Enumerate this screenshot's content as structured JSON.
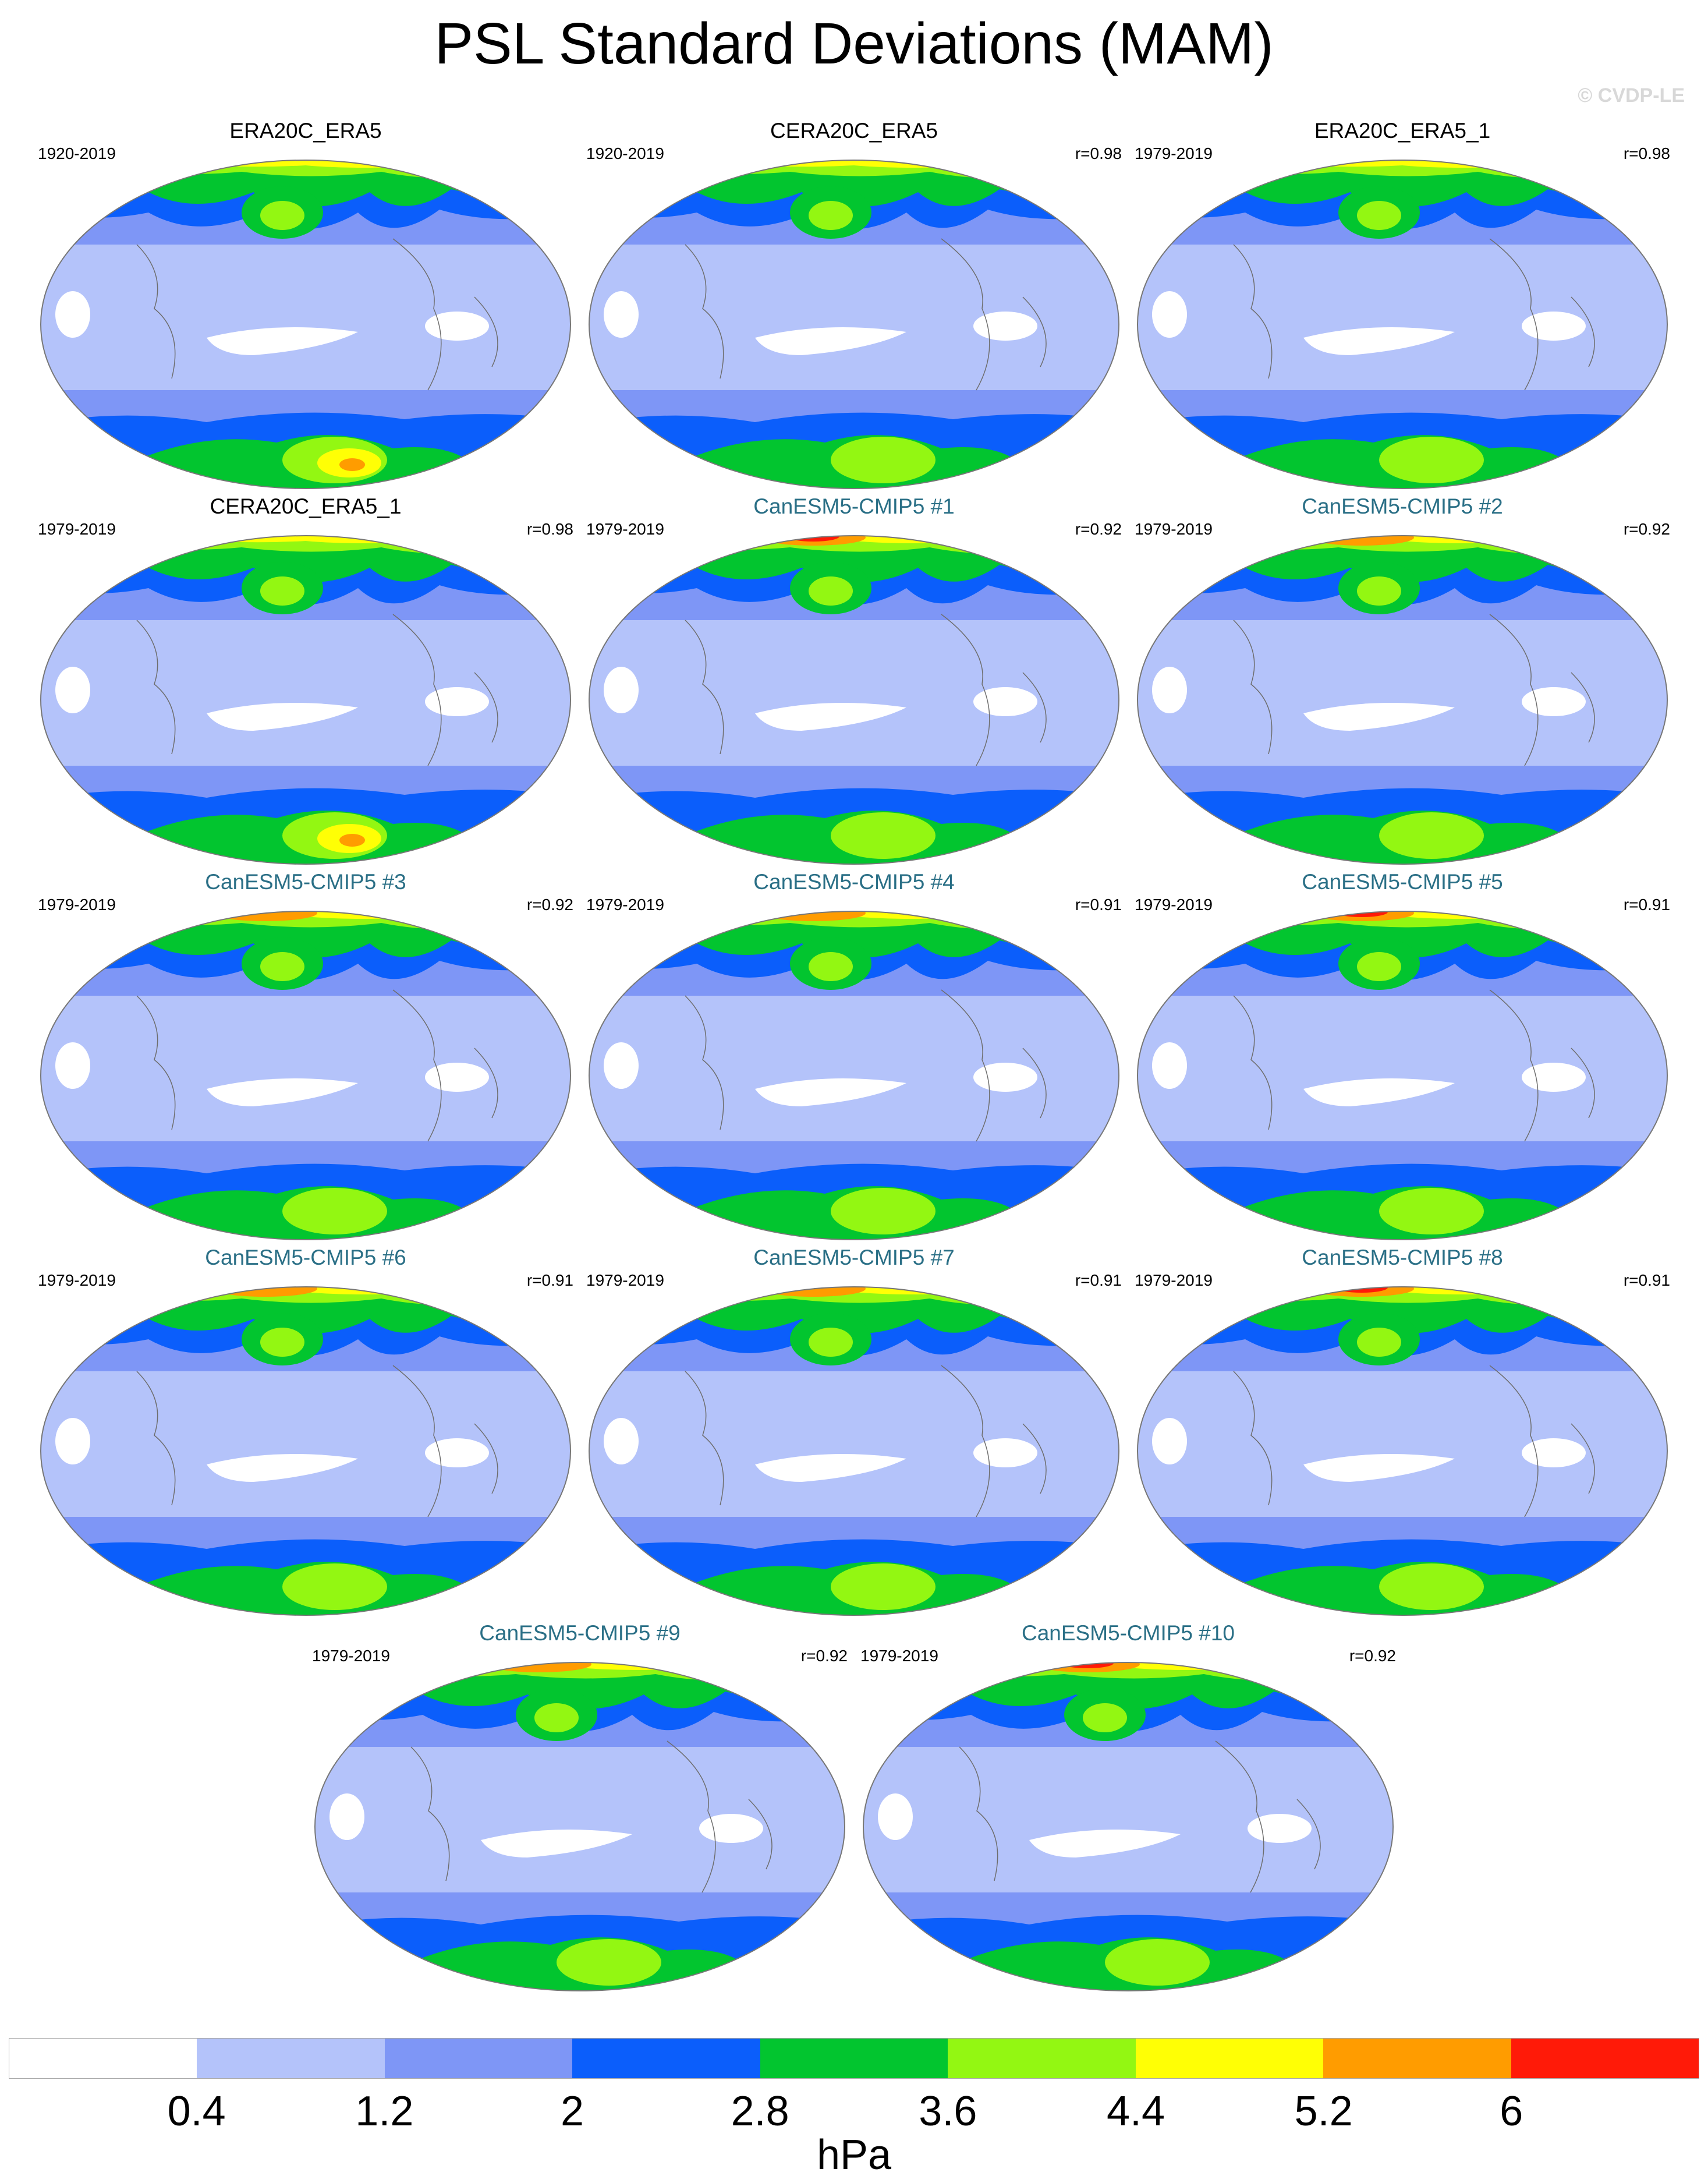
{
  "title": "PSL Standard Deviations (MAM)",
  "copyright": "© CVDP-LE",
  "units": "hPa",
  "colorbar": {
    "colors": [
      "#ffffff",
      "#b4c3fa",
      "#7e96f6",
      "#0b5efb",
      "#02c52f",
      "#93f712",
      "#ffff05",
      "#ff9c00",
      "#ff1a08"
    ],
    "labels": [
      "0.4",
      "1.2",
      "2",
      "2.8",
      "3.6",
      "4.4",
      "5.2",
      "6"
    ]
  },
  "panels": [
    {
      "title": "ERA20C_ERA5",
      "years": "1920-2019",
      "corr": "",
      "model": false
    },
    {
      "title": "CERA20C_ERA5",
      "years": "1920-2019",
      "corr": "r=0.98",
      "model": false
    },
    {
      "title": "ERA20C_ERA5_1",
      "years": "1979-2019",
      "corr": "r=0.98",
      "model": false
    },
    {
      "title": "CERA20C_ERA5_1",
      "years": "1979-2019",
      "corr": "r=0.98",
      "model": false
    },
    {
      "title": "CanESM5-CMIP5 #1",
      "years": "1979-2019",
      "corr": "r=0.92",
      "model": true
    },
    {
      "title": "CanESM5-CMIP5 #2",
      "years": "1979-2019",
      "corr": "r=0.92",
      "model": true
    },
    {
      "title": "CanESM5-CMIP5 #3",
      "years": "1979-2019",
      "corr": "r=0.92",
      "model": true
    },
    {
      "title": "CanESM5-CMIP5 #4",
      "years": "1979-2019",
      "corr": "r=0.91",
      "model": true
    },
    {
      "title": "CanESM5-CMIP5 #5",
      "years": "1979-2019",
      "corr": "r=0.91",
      "model": true
    },
    {
      "title": "CanESM5-CMIP5 #6",
      "years": "1979-2019",
      "corr": "r=0.91",
      "model": true
    },
    {
      "title": "CanESM5-CMIP5 #7",
      "years": "1979-2019",
      "corr": "r=0.91",
      "model": true
    },
    {
      "title": "CanESM5-CMIP5 #8",
      "years": "1979-2019",
      "corr": "r=0.91",
      "model": true
    },
    {
      "title": "CanESM5-CMIP5 #9",
      "years": "1979-2019",
      "corr": "r=0.92",
      "model": true
    },
    {
      "title": "CanESM5-CMIP5 #10",
      "years": "1979-2019",
      "corr": "r=0.92",
      "model": true
    }
  ]
}
